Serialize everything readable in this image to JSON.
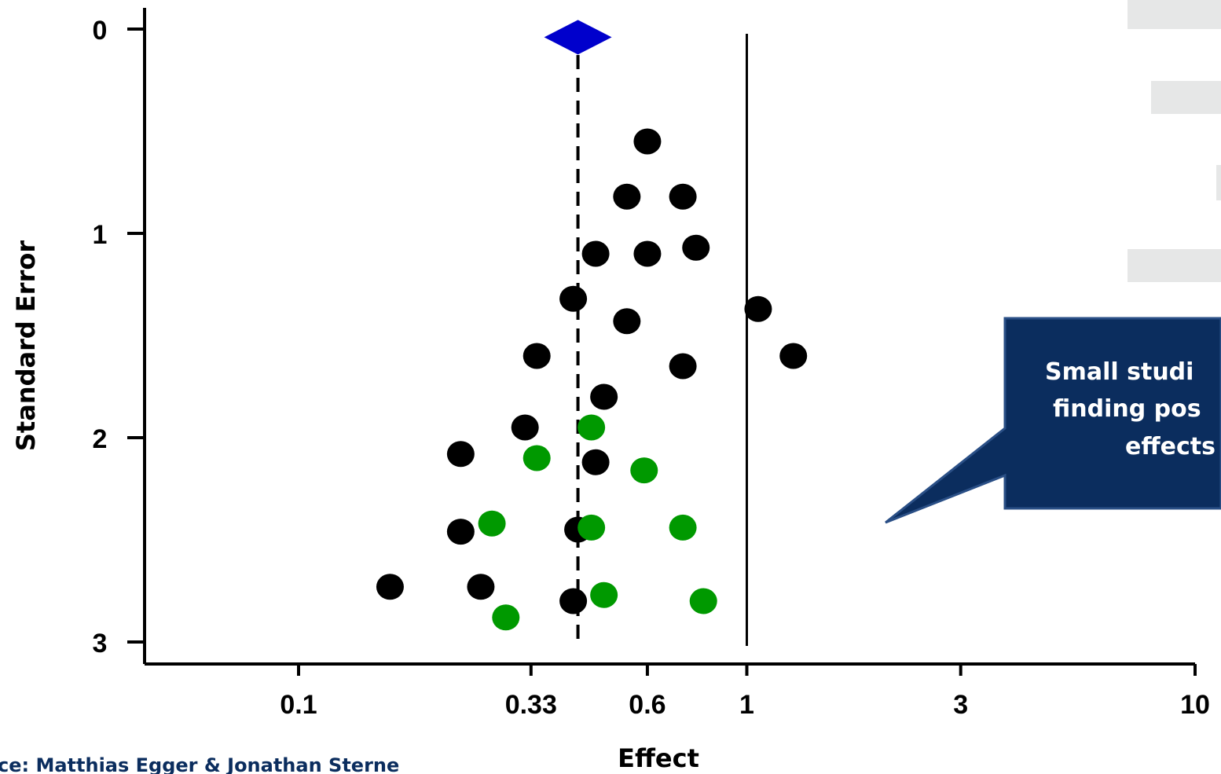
{
  "chart_data": {
    "type": "scatter",
    "title": "",
    "xlabel": "Effect",
    "ylabel": "Standard Error",
    "xscale": "log",
    "xlim": [
      0.05,
      10
    ],
    "ylim": [
      3,
      0
    ],
    "x_ticks": [
      {
        "value": 0.1,
        "label": "0.1"
      },
      {
        "value": 0.33,
        "label": "0.33"
      },
      {
        "value": 0.6,
        "label": "0.6"
      },
      {
        "value": 1,
        "label": "1"
      },
      {
        "value": 3,
        "label": "3"
      },
      {
        "value": 10,
        "label": "10"
      }
    ],
    "y_ticks": [
      {
        "value": 0,
        "label": "0"
      },
      {
        "value": 1,
        "label": "1"
      },
      {
        "value": 2,
        "label": "2"
      },
      {
        "value": 3,
        "label": "3"
      }
    ],
    "pooled_estimate": {
      "x": 0.42,
      "y": 0.04,
      "color": "#0000cc"
    },
    "pooled_line_x": 0.42,
    "null_line_x": 1,
    "series": [
      {
        "color": "#000000",
        "points": [
          {
            "x": 0.6,
            "y": 0.55
          },
          {
            "x": 0.54,
            "y": 0.82
          },
          {
            "x": 0.72,
            "y": 0.82
          },
          {
            "x": 0.46,
            "y": 1.1
          },
          {
            "x": 0.6,
            "y": 1.1
          },
          {
            "x": 0.77,
            "y": 1.07
          },
          {
            "x": 0.41,
            "y": 1.32
          },
          {
            "x": 1.06,
            "y": 1.37
          },
          {
            "x": 0.54,
            "y": 1.43
          },
          {
            "x": 0.34,
            "y": 1.6
          },
          {
            "x": 0.72,
            "y": 1.65
          },
          {
            "x": 1.27,
            "y": 1.6
          },
          {
            "x": 0.48,
            "y": 1.8
          },
          {
            "x": 0.32,
            "y": 1.95
          },
          {
            "x": 0.23,
            "y": 2.08
          },
          {
            "x": 0.46,
            "y": 2.12
          },
          {
            "x": 0.23,
            "y": 2.46
          },
          {
            "x": 0.42,
            "y": 2.45
          },
          {
            "x": 0.16,
            "y": 2.73
          },
          {
            "x": 0.255,
            "y": 2.73
          },
          {
            "x": 0.41,
            "y": 2.8
          }
        ]
      },
      {
        "color": "#009900",
        "points": [
          {
            "x": 0.45,
            "y": 1.95
          },
          {
            "x": 0.34,
            "y": 2.1
          },
          {
            "x": 0.59,
            "y": 2.16
          },
          {
            "x": 0.27,
            "y": 2.42
          },
          {
            "x": 0.45,
            "y": 2.44
          },
          {
            "x": 0.72,
            "y": 2.44
          },
          {
            "x": 0.48,
            "y": 2.77
          },
          {
            "x": 0.8,
            "y": 2.8
          },
          {
            "x": 0.29,
            "y": 2.88
          }
        ]
      }
    ]
  },
  "callout": {
    "lines": [
      "Small studi",
      "finding pos",
      "effects"
    ],
    "fill": "#0b2d5e"
  },
  "source_note": "ce: Matthias Egger & Jonathan Sterne",
  "source_color": "#0b2d5e"
}
